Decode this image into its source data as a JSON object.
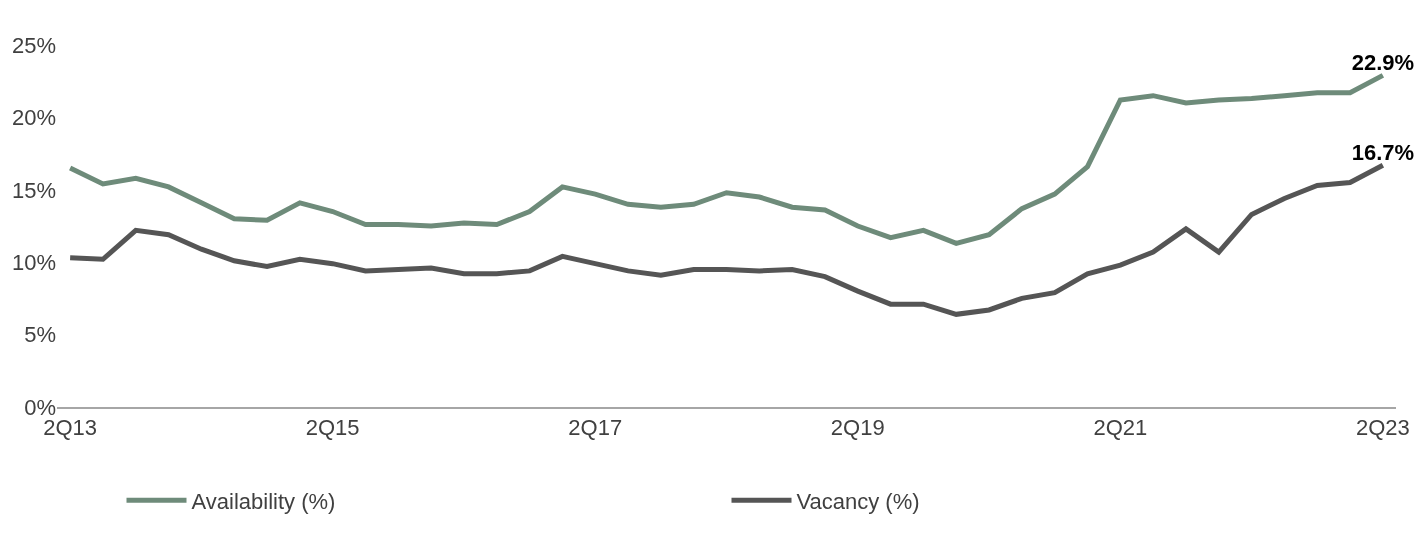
{
  "chart_data": {
    "type": "line",
    "categories": [
      "2Q13",
      null,
      null,
      null,
      null,
      null,
      null,
      null,
      "2Q15",
      null,
      null,
      null,
      null,
      null,
      null,
      null,
      "2Q17",
      null,
      null,
      null,
      null,
      null,
      null,
      null,
      "2Q19",
      null,
      null,
      null,
      null,
      null,
      null,
      null,
      "2Q21",
      null,
      null,
      null,
      null,
      null,
      null,
      null,
      "2Q23"
    ],
    "series": [
      {
        "name": "Availability (%)",
        "color": "#6e8b7a",
        "values": [
          16.5,
          15.4,
          15.8,
          15.2,
          14.1,
          13.0,
          12.9,
          14.1,
          13.5,
          12.6,
          12.6,
          12.5,
          12.7,
          12.6,
          13.5,
          15.2,
          14.7,
          14.0,
          13.8,
          14.0,
          14.8,
          14.5,
          13.8,
          13.6,
          12.5,
          11.7,
          12.2,
          11.3,
          11.9,
          13.7,
          14.7,
          16.6,
          21.2,
          21.5,
          21.0,
          21.2,
          21.3,
          21.5,
          21.7,
          21.7,
          22.9
        ],
        "value_labels": [
          null,
          null,
          null,
          null,
          null,
          null,
          null,
          null,
          null,
          null,
          null,
          null,
          null,
          null,
          null,
          null,
          null,
          null,
          null,
          null,
          null,
          null,
          null,
          null,
          null,
          null,
          null,
          null,
          null,
          null,
          null,
          null,
          null,
          null,
          null,
          null,
          null,
          null,
          null,
          null,
          "22.9%"
        ]
      },
      {
        "name": "Vacancy (%)",
        "color": "#555555",
        "values": [
          10.3,
          10.2,
          12.2,
          11.9,
          10.9,
          10.1,
          9.7,
          10.2,
          9.9,
          9.4,
          9.5,
          9.6,
          9.2,
          9.2,
          9.4,
          10.4,
          9.9,
          9.4,
          9.1,
          9.5,
          9.5,
          9.4,
          9.5,
          9.0,
          8.0,
          7.1,
          7.1,
          6.4,
          6.7,
          7.5,
          7.9,
          9.2,
          9.8,
          10.7,
          12.3,
          10.7,
          13.3,
          14.4,
          15.3,
          15.5,
          16.7
        ],
        "value_labels": [
          null,
          null,
          null,
          null,
          null,
          null,
          null,
          null,
          null,
          null,
          null,
          null,
          null,
          null,
          null,
          null,
          null,
          null,
          null,
          null,
          null,
          null,
          null,
          null,
          null,
          null,
          null,
          null,
          null,
          null,
          null,
          null,
          null,
          null,
          null,
          null,
          null,
          null,
          null,
          null,
          "16.7%"
        ]
      }
    ],
    "ylim": [
      0,
      25
    ],
    "yticks": [
      {
        "value": 0,
        "label": "0%"
      },
      {
        "value": 5,
        "label": "5%"
      },
      {
        "value": 10,
        "label": "10%"
      },
      {
        "value": 15,
        "label": "15%"
      },
      {
        "value": 20,
        "label": "20%"
      },
      {
        "value": 25,
        "label": "25%"
      }
    ],
    "legend": "bottom",
    "marker": "none",
    "line_style": "solid"
  }
}
